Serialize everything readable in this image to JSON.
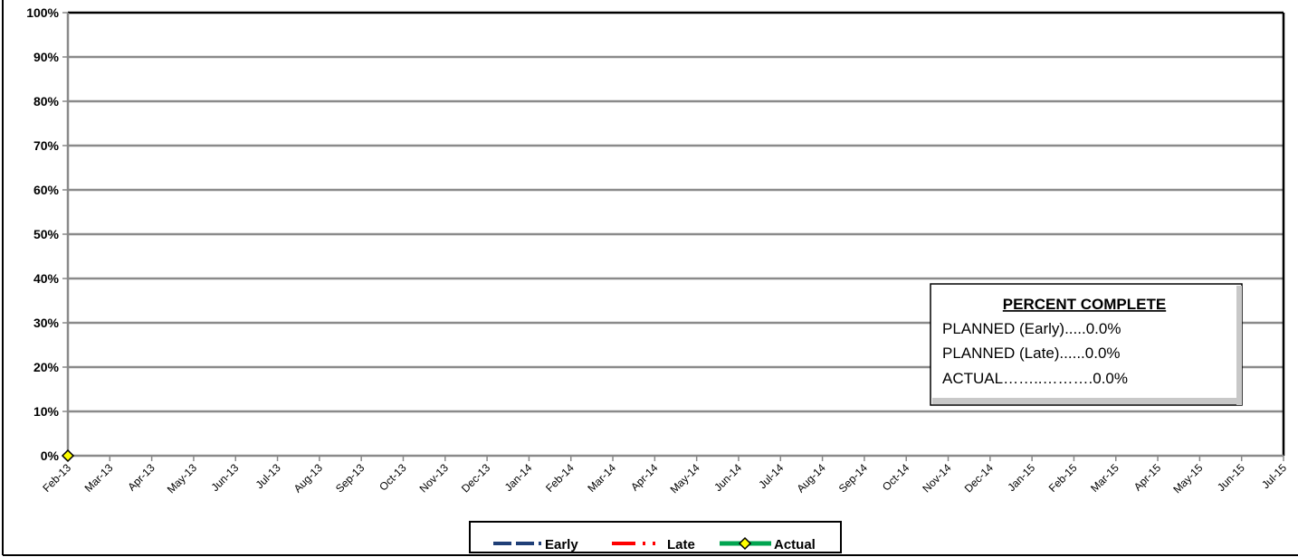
{
  "chart_data": {
    "type": "line",
    "title": "",
    "xlabel": "",
    "ylabel": "",
    "ylim": [
      0,
      100
    ],
    "y_ticks": [
      "0%",
      "10%",
      "20%",
      "30%",
      "40%",
      "50%",
      "60%",
      "70%",
      "80%",
      "90%",
      "100%"
    ],
    "x_ticks": [
      "Feb-13",
      "Mar-13",
      "Apr-13",
      "May-13",
      "Jun-13",
      "Jul-13",
      "Aug-13",
      "Sep-13",
      "Oct-13",
      "Nov-13",
      "Dec-13",
      "Jan-14",
      "Feb-14",
      "Mar-14",
      "Apr-14",
      "May-14",
      "Jun-14",
      "Jul-14",
      "Aug-14",
      "Sep-14",
      "Oct-14",
      "Nov-14",
      "Dec-14",
      "Jan-15",
      "Feb-15",
      "Mar-15",
      "Apr-15",
      "May-15",
      "Jun-15",
      "Jul-15"
    ],
    "grid": true,
    "legend_position": "bottom",
    "series": [
      {
        "name": "Early",
        "style": "dashed",
        "color": "#1f3f77",
        "x": [],
        "values": []
      },
      {
        "name": "Late",
        "style": "dotted",
        "color": "#ff0000",
        "x": [],
        "values": []
      },
      {
        "name": "Actual",
        "style": "solid-diamond",
        "color": "#00a550",
        "marker_color": "#ffff00",
        "x": [
          "Feb-13"
        ],
        "values": [
          0
        ]
      }
    ],
    "summary_box": {
      "title": "PERCENT COMPLETE",
      "lines": [
        "PLANNED (Early).....0.0%",
        "PLANNED (Late)......0.0%",
        "ACTUAL……..……….0.0%"
      ]
    }
  }
}
